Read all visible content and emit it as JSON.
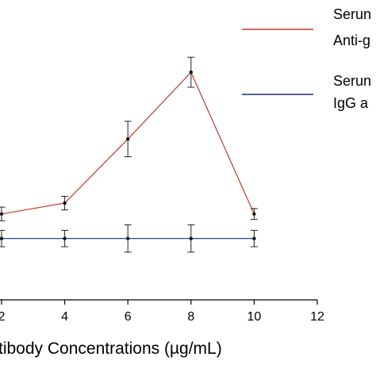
{
  "chart_data": {
    "type": "line",
    "x_tick_labels": [
      "2",
      "4",
      "6",
      "8",
      "10",
      "12"
    ],
    "xlim": [
      1.8,
      12
    ],
    "ylim": [
      0,
      22
    ],
    "xlabel": "tibody Concentrations (µg/mL)",
    "series": [
      {
        "name": "Serum Anti-g",
        "legend_lines": [
          "Serun",
          "Anti-g"
        ],
        "color": "#c0392b",
        "x": [
          2,
          4,
          6,
          8,
          10
        ],
        "y": [
          6.3,
          7.1,
          11.8,
          16.7,
          6.3
        ],
        "err": [
          0.5,
          0.5,
          1.3,
          1.1,
          0.4
        ]
      },
      {
        "name": "Serum IgG a",
        "legend_lines": [
          "Serun",
          "IgG a"
        ],
        "color": "#1f2d6b",
        "x": [
          2,
          4,
          6,
          8,
          10
        ],
        "y": [
          4.5,
          4.5,
          4.5,
          4.5,
          4.5
        ],
        "err": [
          0.6,
          0.6,
          1.0,
          1.0,
          0.6
        ]
      }
    ]
  }
}
